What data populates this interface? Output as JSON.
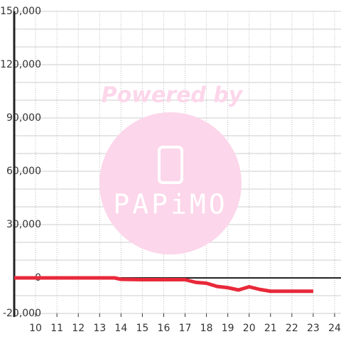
{
  "chart_data": {
    "type": "line",
    "x": [
      9,
      10,
      11,
      12,
      13,
      13.7,
      14,
      15,
      16,
      17,
      17.5,
      18,
      18.5,
      19,
      19.5,
      20,
      20.5,
      21,
      22,
      23
    ],
    "series": [
      {
        "color": "#e8293a",
        "values": [
          0,
          0,
          0,
          0,
          0,
          0,
          -800,
          -1000,
          -1000,
          -1000,
          -2500,
          -3000,
          -4800,
          -5500,
          -6800,
          -5000,
          -6500,
          -7500,
          -7500,
          -7500
        ]
      }
    ],
    "xlim": [
      9,
      24.3
    ],
    "xticks": [
      10,
      11,
      12,
      13,
      14,
      15,
      16,
      17,
      18,
      19,
      20,
      21,
      22,
      23,
      24
    ],
    "ylim": [
      -20000,
      150000
    ],
    "yticks": [
      {
        "value": 150000,
        "label": "150,000"
      },
      {
        "value": 120000,
        "label": "120,000"
      },
      {
        "value": 90000,
        "label": "90,000"
      },
      {
        "value": 60000,
        "label": "60,000"
      },
      {
        "value": 30000,
        "label": "30,000"
      },
      0,
      {
        "value": -20000,
        "label": "-20,000"
      }
    ],
    "ygrid": [
      140000,
      130000,
      110000,
      100000,
      80000,
      70000,
      50000,
      40000,
      20000,
      10000,
      -10000
    ],
    "grid": true,
    "watermark": {
      "line1": "Powered by",
      "line2": "PAPiMO"
    }
  }
}
